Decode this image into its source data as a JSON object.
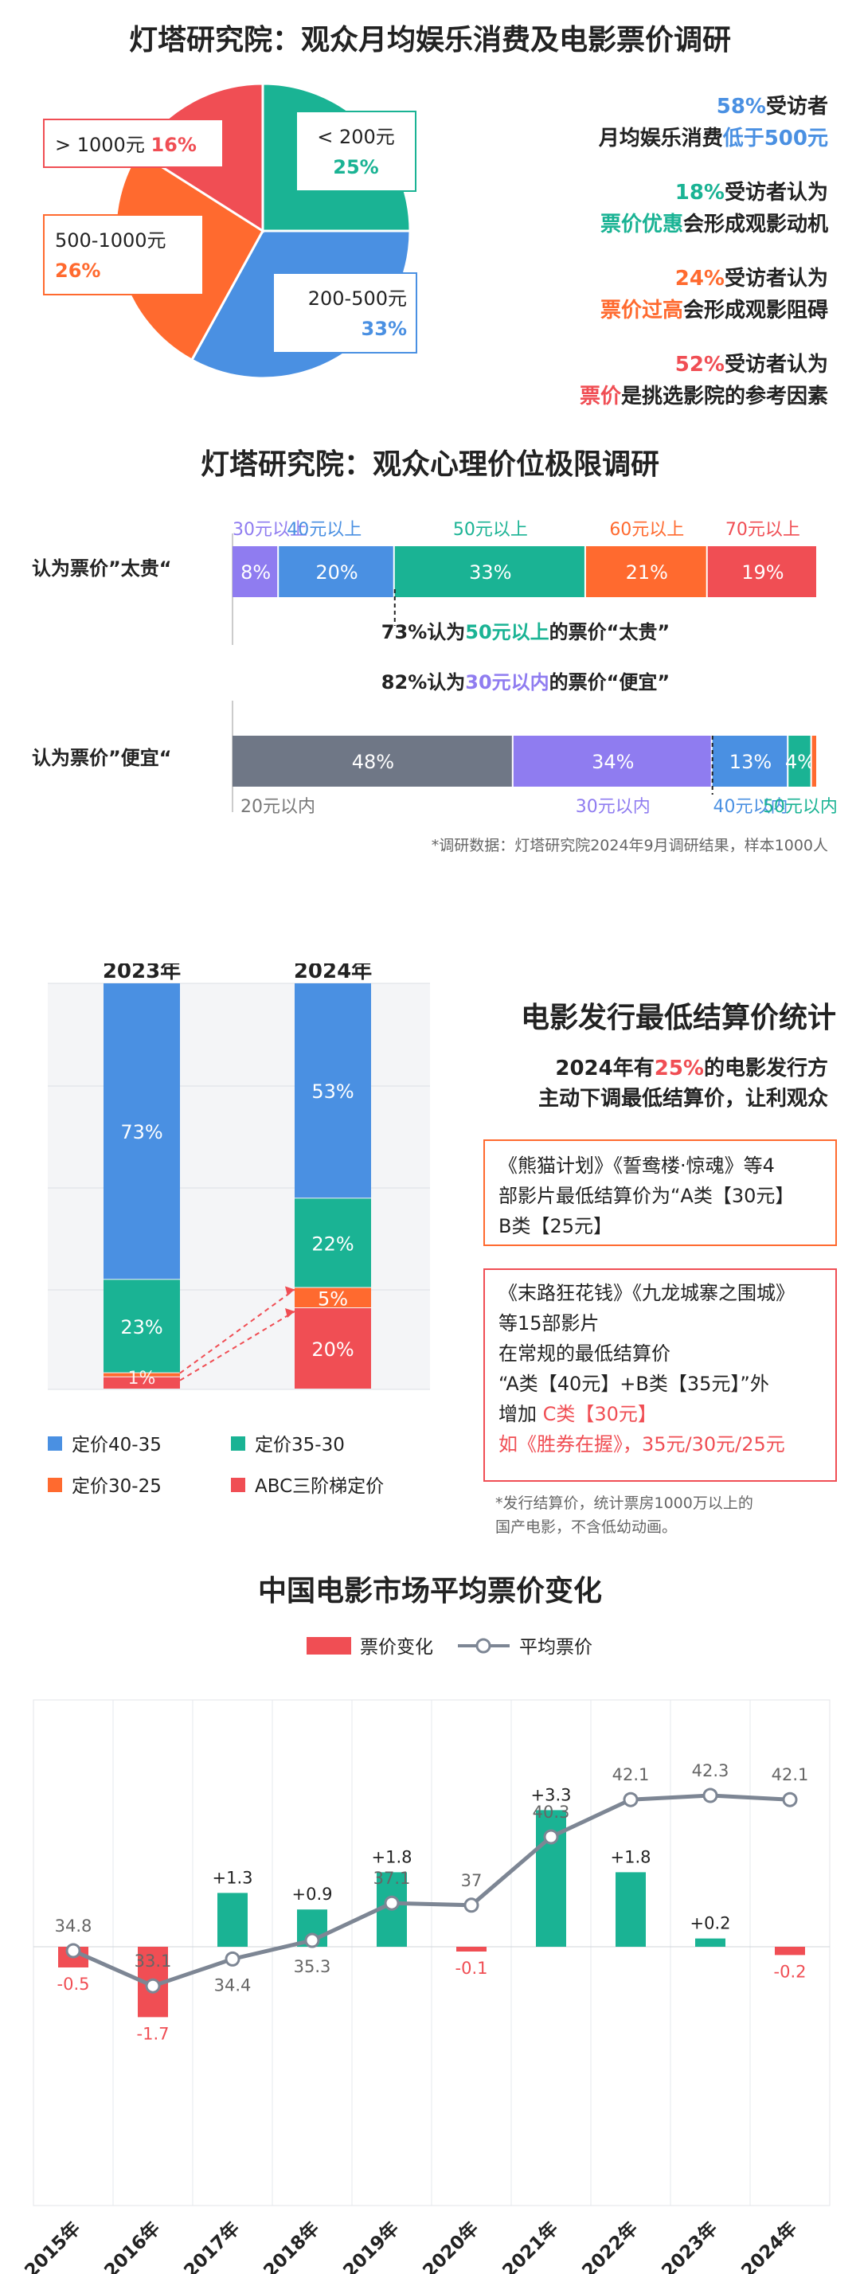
{
  "colors": {
    "teal": "#1ab394",
    "blue": "#4a90e2",
    "orange": "#ff6a2f",
    "red": "#f04e54",
    "purple": "#8f7cf0",
    "gray": "#6f7786",
    "line": "#7d8694"
  },
  "section1": {
    "title": "灯塔研究院：观众月均娱乐消费及电影票价调研",
    "stats": [
      {
        "line1": [
          {
            "t": "58%",
            "c": "blue"
          },
          {
            "t": "受访者",
            "c": "dark"
          }
        ],
        "line2": [
          {
            "t": "月均娱乐消费",
            "c": "dark"
          },
          {
            "t": "低于500元",
            "c": "blue"
          }
        ]
      },
      {
        "line1": [
          {
            "t": "18%",
            "c": "teal"
          },
          {
            "t": "受访者认为",
            "c": "dark"
          }
        ],
        "line2": [
          {
            "t": "票价优惠",
            "c": "teal"
          },
          {
            "t": "会形成观影动机",
            "c": "dark"
          }
        ]
      },
      {
        "line1": [
          {
            "t": "24%",
            "c": "orange"
          },
          {
            "t": "受访者认为",
            "c": "dark"
          }
        ],
        "line2": [
          {
            "t": "票价过高",
            "c": "orange"
          },
          {
            "t": "会形成观影阻碍",
            "c": "dark"
          }
        ]
      },
      {
        "line1": [
          {
            "t": "52%",
            "c": "red"
          },
          {
            "t": "受访者认为",
            "c": "dark"
          }
        ],
        "line2": [
          {
            "t": "票价",
            "c": "red"
          },
          {
            "t": "是挑选影院的参考因素",
            "c": "dark"
          }
        ]
      }
    ]
  },
  "section2": {
    "title": "灯塔研究院：观众心理价位极限调研",
    "row1_label": "认为票价”太贵“",
    "row2_label": "认为票价”便宜“",
    "row1_top_labels": [
      "30元以上",
      "40元以上",
      "50元以上",
      "60元以上",
      "70元以上"
    ],
    "row2_bottom_labels": [
      "20元以内",
      "30元以内",
      "40元以内",
      "50元以内"
    ],
    "note1": [
      {
        "t": "73%认为",
        "c": "dark"
      },
      {
        "t": "50元以上",
        "c": "teal"
      },
      {
        "t": "的票价“太贵”",
        "c": "dark"
      }
    ],
    "note2": [
      {
        "t": "82%认为",
        "c": "dark"
      },
      {
        "t": "30元以内",
        "c": "purple"
      },
      {
        "t": "的票价“便宜”",
        "c": "dark"
      }
    ],
    "footnote": "*调研数据：灯塔研究院2024年9月调研结果，样本1000人"
  },
  "section3": {
    "title": "电影发行最低结算价统计",
    "headline_line1": [
      {
        "t": "2024年有",
        "c": "dark"
      },
      {
        "t": "25%",
        "c": "red"
      },
      {
        "t": "的电影发行方",
        "c": "dark"
      }
    ],
    "headline_line2": "主动下调最低结算价，让利观众",
    "box1_lines": [
      "《熊猫计划》《誓鸯楼·惊魂》等4",
      "部影片最低结算价为“A类【30元】",
      "B类【25元】"
    ],
    "box2_lines": [
      [
        {
          "t": "《末路狂花钱》《九龙城寨之围城》",
          "c": "dark"
        }
      ],
      [
        {
          "t": "等15部影片",
          "c": "dark"
        }
      ],
      [
        {
          "t": "在常规的最低结算价",
          "c": "dark"
        }
      ],
      [
        {
          "t": "“A类【40元】+B类【35元】”外",
          "c": "dark"
        }
      ],
      [
        {
          "t": "增加 ",
          "c": "dark"
        },
        {
          "t": "C类【30元】",
          "c": "red"
        }
      ],
      [
        {
          "t": "如《胜券在握》，35元/30元/25元",
          "c": "red"
        }
      ]
    ],
    "footnote_lines": [
      "*发行结算价，统计票房1000万以上的",
      "国产电影，不含低幼动画。"
    ]
  },
  "section4": {
    "title": "中国电影市场平均票价变化"
  },
  "chart_data": [
    {
      "type": "pie",
      "title": "灯塔研究院：观众月均娱乐消费及电影票价调研",
      "slices": [
        {
          "label": "< 200元",
          "value": 25,
          "value_label": "25%",
          "color": "#1ab394"
        },
        {
          "label": "200-500元",
          "value": 33,
          "value_label": "33%",
          "color": "#4a90e2"
        },
        {
          "label": "500-1000元",
          "value": 26,
          "value_label": "26%",
          "color": "#ff6a2f"
        },
        {
          "label": "> 1000元",
          "value": 16,
          "value_label": "16%",
          "color": "#f04e54"
        }
      ]
    },
    {
      "type": "bar",
      "orientation": "horizontal-stacked",
      "title": "灯塔研究院：观众心理价位极限调研",
      "categories": [
        "认为票价”太贵“",
        "认为票价”便宜“"
      ],
      "rows": [
        {
          "category": "认为票价”太贵“",
          "segments": [
            {
              "name": "30元以上",
              "value": 8,
              "color": "#8f7cf0"
            },
            {
              "name": "40元以上",
              "value": 20,
              "color": "#4a90e2"
            },
            {
              "name": "50元以上",
              "value": 33,
              "color": "#1ab394"
            },
            {
              "name": "60元以上",
              "value": 21,
              "color": "#ff6a2f"
            },
            {
              "name": "70元以上",
              "value": 19,
              "color": "#f04e54"
            }
          ]
        },
        {
          "category": "认为票价”便宜“",
          "segments": [
            {
              "name": "20元以内",
              "value": 48,
              "color": "#6f7786"
            },
            {
              "name": "30元以内",
              "value": 34,
              "color": "#8f7cf0"
            },
            {
              "name": "40元以内",
              "value": 13,
              "color": "#4a90e2"
            },
            {
              "name": "50元以内",
              "value": 4,
              "color": "#1ab394"
            },
            {
              "name": "",
              "value": 1,
              "color": "#ff6a2f"
            }
          ]
        }
      ]
    },
    {
      "type": "bar",
      "orientation": "vertical-stacked",
      "title": "电影发行最低结算价统计",
      "categories": [
        "2023年",
        "2024年"
      ],
      "legend_position": "bottom",
      "series": [
        {
          "name": "定价40-35",
          "color": "#4a90e2",
          "values": [
            73,
            53
          ]
        },
        {
          "name": "定价35-30",
          "color": "#1ab394",
          "values": [
            23,
            22
          ]
        },
        {
          "name": "定价30-25",
          "color": "#ff6a2f",
          "values": [
            1,
            5
          ]
        },
        {
          "name": "ABC三阶梯定价",
          "color": "#f04e54",
          "values": [
            3,
            20
          ]
        }
      ],
      "data_labels": [
        [
          "73%",
          "23%",
          "",
          ""
        ],
        [
          "53%",
          "22%",
          "5%",
          "20%"
        ]
      ],
      "overlap_label": "1%"
    },
    {
      "type": "bar+line",
      "title": "中国电影市场平均票价变化",
      "legend_position": "top",
      "categories": [
        "2015年",
        "2016年",
        "2017年",
        "2018年",
        "2019年",
        "2020年",
        "2021年",
        "2022年",
        "2023年",
        "2024年"
      ],
      "series": [
        {
          "name": "票价变化",
          "type": "bar",
          "values": [
            -0.5,
            -1.7,
            1.3,
            0.9,
            1.8,
            -0.1,
            3.3,
            1.8,
            0.2,
            -0.2
          ],
          "labels": [
            "-0.5",
            "-1.7",
            "+1.3",
            "+0.9",
            "+1.8",
            "-0.1",
            "+3.3",
            "+1.8",
            "+0.2",
            "-0.2"
          ]
        },
        {
          "name": "平均票价",
          "type": "line",
          "values": [
            34.8,
            33.1,
            34.4,
            35.3,
            37.1,
            37,
            40.3,
            42.1,
            42.3,
            42.1
          ],
          "labels": [
            "34.8",
            "33.1",
            "34.4",
            "35.3",
            "37.1",
            "37",
            "40.3",
            "42.1",
            "42.3",
            "42.1"
          ]
        }
      ]
    }
  ]
}
